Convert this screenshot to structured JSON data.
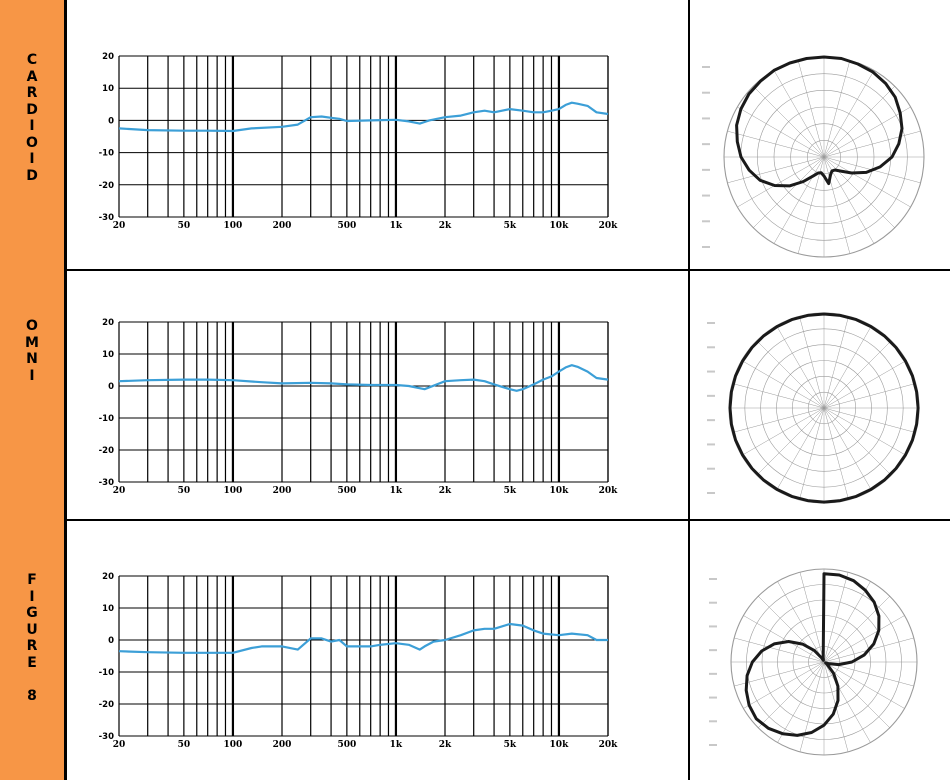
{
  "colors": {
    "label_bg": "#f79646",
    "curve": "#3c9fd7",
    "grid": "#000000",
    "polar_curve": "#1a1a1a",
    "polar_grid": "#9a9a9a"
  },
  "chart_data": [
    {
      "type": "line",
      "mode_label": "C\nA\nR\nD\nI\nO\nI\nD",
      "xscale": "log",
      "xlim": [
        20,
        20000
      ],
      "ylim": [
        -30,
        20
      ],
      "x_ticks": [
        20,
        50,
        100,
        200,
        500,
        1000,
        2000,
        5000,
        10000,
        20000
      ],
      "x_tick_labels": [
        "20",
        "50",
        "100",
        "200",
        "500",
        "1k",
        "2k",
        "5k",
        "10k",
        "20k"
      ],
      "y_ticks": [
        20,
        10,
        0,
        -10,
        -20,
        -30
      ],
      "y_tick_labels": [
        "20",
        "10",
        "0",
        "-10",
        "-20",
        "-30"
      ],
      "grid": true,
      "x": [
        20,
        30,
        50,
        70,
        100,
        130,
        200,
        250,
        300,
        350,
        400,
        450,
        500,
        700,
        1000,
        1200,
        1400,
        1500,
        1600,
        2000,
        2500,
        3000,
        3500,
        4000,
        5000,
        6000,
        7000,
        8000,
        9000,
        10000,
        11000,
        12000,
        13000,
        15000,
        17000,
        20000
      ],
      "y": [
        -2.5,
        -3,
        -3.2,
        -3.2,
        -3.3,
        -2.5,
        -2,
        -1.3,
        1,
        1.2,
        0.8,
        0.5,
        -0.2,
        0,
        0.2,
        -0.3,
        -1,
        -0.5,
        0,
        1,
        1.5,
        2.5,
        3,
        2.5,
        3.5,
        3,
        2.5,
        2.5,
        3,
        3.5,
        4.8,
        5.5,
        5.2,
        4.5,
        2.5,
        2
      ]
    },
    {
      "type": "polar",
      "pattern": "cardioid",
      "r_rings": 6,
      "spokes": 24,
      "curve_r": [
        1.0,
        1.0,
        0.99,
        0.98,
        0.96,
        0.93,
        0.88,
        0.83,
        0.76,
        0.68,
        0.57,
        0.45,
        0.32,
        0.22,
        0.17,
        0.16,
        0.19,
        0.27,
        0.19,
        0.16,
        0.17,
        0.22,
        0.32,
        0.45,
        0.57,
        0.68,
        0.76,
        0.83,
        0.88,
        0.93,
        0.96,
        0.98,
        0.99,
        1.0,
        1.0,
        1.0
      ]
    },
    {
      "type": "line",
      "mode_label": "O\nM\nN\nI",
      "xscale": "log",
      "xlim": [
        20,
        20000
      ],
      "ylim": [
        -30,
        20
      ],
      "x_ticks": [
        20,
        50,
        100,
        200,
        500,
        1000,
        2000,
        5000,
        10000,
        20000
      ],
      "x_tick_labels": [
        "20",
        "50",
        "100",
        "200",
        "500",
        "1k",
        "2k",
        "5k",
        "10k",
        "20k"
      ],
      "y_ticks": [
        20,
        10,
        0,
        -10,
        -20,
        -30
      ],
      "y_tick_labels": [
        "20",
        "10",
        "0",
        "-10",
        "-20",
        "-30"
      ],
      "grid": true,
      "x": [
        20,
        30,
        50,
        70,
        100,
        150,
        200,
        300,
        400,
        500,
        700,
        1000,
        1200,
        1500,
        2000,
        2500,
        3000,
        3500,
        4000,
        5000,
        5500,
        6000,
        7000,
        8000,
        9000,
        10000,
        11000,
        12000,
        13000,
        15000,
        17000,
        20000
      ],
      "y": [
        1.5,
        1.8,
        2,
        2,
        1.8,
        1.2,
        0.8,
        1,
        0.8,
        0.5,
        0.3,
        0.3,
        0,
        -1,
        1.5,
        1.8,
        2,
        1.5,
        0.5,
        -1,
        -1.5,
        -1,
        0.5,
        2,
        3,
        4.5,
        5.8,
        6.5,
        6,
        4.5,
        2.5,
        2
      ]
    },
    {
      "type": "polar",
      "pattern": "omni",
      "r_rings": 6,
      "spokes": 24,
      "curve_r": [
        0.99,
        0.99,
        0.99,
        0.99,
        0.99,
        0.99,
        0.99,
        0.99,
        0.99,
        0.99,
        0.99,
        0.99,
        0.99,
        0.99,
        0.99,
        0.99,
        0.99,
        0.99,
        0.99,
        0.99,
        0.99,
        0.99,
        0.99,
        0.99,
        0.99,
        0.99,
        0.99,
        0.99,
        0.99,
        0.99,
        0.99,
        0.99,
        0.99,
        0.99,
        0.99,
        0.99
      ]
    },
    {
      "type": "line",
      "mode_label": "F\nI\nG\nU\nR\nE\n\n8",
      "xscale": "log",
      "xlim": [
        20,
        20000
      ],
      "ylim": [
        -30,
        20
      ],
      "x_ticks": [
        20,
        50,
        100,
        200,
        500,
        1000,
        2000,
        5000,
        10000,
        20000
      ],
      "x_tick_labels": [
        "20",
        "50",
        "100",
        "200",
        "500",
        "1k",
        "2k",
        "5k",
        "10k",
        "20k"
      ],
      "y_ticks": [
        20,
        10,
        0,
        -10,
        -20,
        -30
      ],
      "y_tick_labels": [
        "20",
        "10",
        "0",
        "-10",
        "-20",
        "-30"
      ],
      "grid": true,
      "x": [
        20,
        30,
        50,
        70,
        100,
        130,
        150,
        200,
        250,
        300,
        350,
        400,
        450,
        500,
        600,
        700,
        800,
        1000,
        1200,
        1400,
        1500,
        1700,
        2000,
        2500,
        3000,
        3500,
        4000,
        5000,
        6000,
        7000,
        8000,
        10000,
        12000,
        15000,
        17000,
        20000
      ],
      "y": [
        -3.5,
        -3.8,
        -4,
        -4,
        -4,
        -2.5,
        -2,
        -2,
        -3,
        0.5,
        0.5,
        -0.5,
        0,
        -2,
        -2,
        -2,
        -1.5,
        -1,
        -1.5,
        -3,
        -2,
        -0.5,
        0,
        1.5,
        3,
        3.5,
        3.5,
        5,
        4.5,
        3,
        2,
        1.5,
        2,
        1.5,
        0,
        0
      ]
    },
    {
      "type": "polar",
      "pattern": "figure-8",
      "r_rings": 6,
      "spokes": 24,
      "curve_r": [
        0.95,
        0.95,
        0.93,
        0.89,
        0.84,
        0.77,
        0.68,
        0.57,
        0.44,
        0.3,
        0.16,
        0.05,
        0.02,
        0.05,
        0.16,
        0.3,
        0.44,
        0.57,
        0.68,
        0.77,
        0.84,
        0.89,
        0.93,
        0.95,
        0.93,
        0.89,
        0.84,
        0.77,
        0.68,
        0.57,
        0.44,
        0.3,
        0.16,
        0.05,
        0.02,
        0.05
      ]
    }
  ]
}
